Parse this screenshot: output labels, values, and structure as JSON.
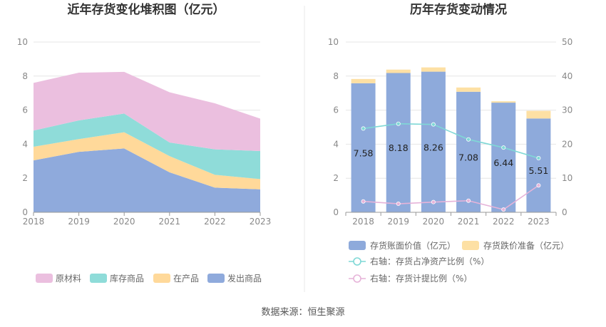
{
  "source_text": "数据来源：恒生聚源",
  "chart_data": [
    {
      "type": "area",
      "stacked": true,
      "title": "近年存货变化堆积图（亿元）",
      "categories": [
        "2018",
        "2019",
        "2020",
        "2021",
        "2022",
        "2023"
      ],
      "ylim": [
        0,
        10
      ],
      "yticks": [
        0,
        2,
        4,
        6,
        8,
        10
      ],
      "grid": true,
      "legend_position": "bottom",
      "series": [
        {
          "name": "发出商品",
          "color": "#8faadc",
          "values": [
            3.05,
            3.55,
            3.75,
            2.35,
            1.45,
            1.35
          ]
        },
        {
          "name": "在产品",
          "color": "#ffd99a",
          "values": [
            0.8,
            0.75,
            0.95,
            0.95,
            0.75,
            0.6
          ]
        },
        {
          "name": "库存商品",
          "color": "#8fdcd9",
          "values": [
            0.95,
            1.1,
            1.1,
            0.8,
            1.5,
            1.65
          ]
        },
        {
          "name": "原材料",
          "color": "#ebbfdf",
          "values": [
            2.8,
            2.8,
            2.45,
            2.95,
            2.7,
            1.9
          ]
        }
      ],
      "legend_order": [
        "原材料",
        "库存商品",
        "在产品",
        "发出商品"
      ]
    },
    {
      "type": "bar",
      "stacked": true,
      "title": "历年存货变动情况",
      "categories": [
        "2018",
        "2019",
        "2020",
        "2021",
        "2022",
        "2023"
      ],
      "ylim": [
        0,
        10
      ],
      "yticks": [
        0,
        2,
        4,
        6,
        8,
        10
      ],
      "y2lim": [
        0,
        50
      ],
      "y2ticks": [
        0,
        10,
        20,
        30,
        40,
        50
      ],
      "grid": true,
      "legend_position": "bottom",
      "series": [
        {
          "name": "存货账面价值（亿元）",
          "axis": "left",
          "kind": "bar",
          "color": "#8eaadb",
          "values": [
            7.58,
            8.18,
            8.26,
            7.08,
            6.44,
            5.51
          ],
          "labels": [
            "7.58",
            "8.18",
            "8.26",
            "7.08",
            "6.44",
            "5.51"
          ]
        },
        {
          "name": "存货跌价准备（亿元）",
          "axis": "left",
          "kind": "bar",
          "color": "#fde0a4",
          "values": [
            0.25,
            0.2,
            0.25,
            0.25,
            0.08,
            0.45
          ]
        },
        {
          "name": "右轴：存货占净资产比例（%）",
          "axis": "right",
          "kind": "line",
          "color": "#7fd8d6",
          "values": [
            24.6,
            26.0,
            25.8,
            21.4,
            19.0,
            15.9
          ]
        },
        {
          "name": "右轴：存货计提比例（%）",
          "axis": "right",
          "kind": "line",
          "color": "#e6b3d9",
          "values": [
            3.2,
            2.5,
            3.0,
            3.4,
            0.8,
            7.9
          ]
        }
      ]
    }
  ]
}
